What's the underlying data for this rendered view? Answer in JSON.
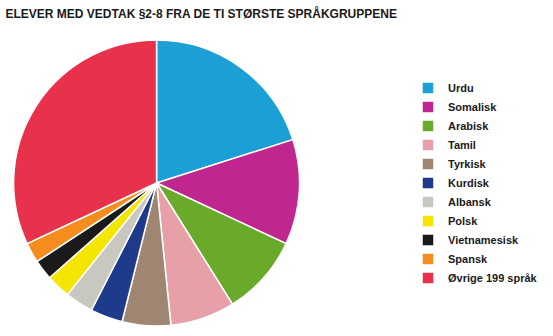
{
  "chart_data": {
    "type": "pie",
    "title": "ELEVER MED VEDTAK §2-8 FRA DE TI STØRSTE SPRÅKGRUPPENE",
    "categories": [
      "Urdu",
      "Somalisk",
      "Arabisk",
      "Tamil",
      "Tyrkisk",
      "Kurdisk",
      "Albansk",
      "Polsk",
      "Vietnamesisk",
      "Spansk",
      "Øvrige 199 språk"
    ],
    "values": [
      22,
      13,
      10,
      8,
      6,
      4,
      3.5,
      3,
      2.5,
      2.5,
      35
    ],
    "colors": [
      "#1b9fd4",
      "#c0278e",
      "#6aaa2a",
      "#e8a0a8",
      "#9e8672",
      "#1e3a8a",
      "#c8c8c0",
      "#f5e600",
      "#1a1a1a",
      "#f58c1e",
      "#e8314a"
    ],
    "legend": "right"
  }
}
